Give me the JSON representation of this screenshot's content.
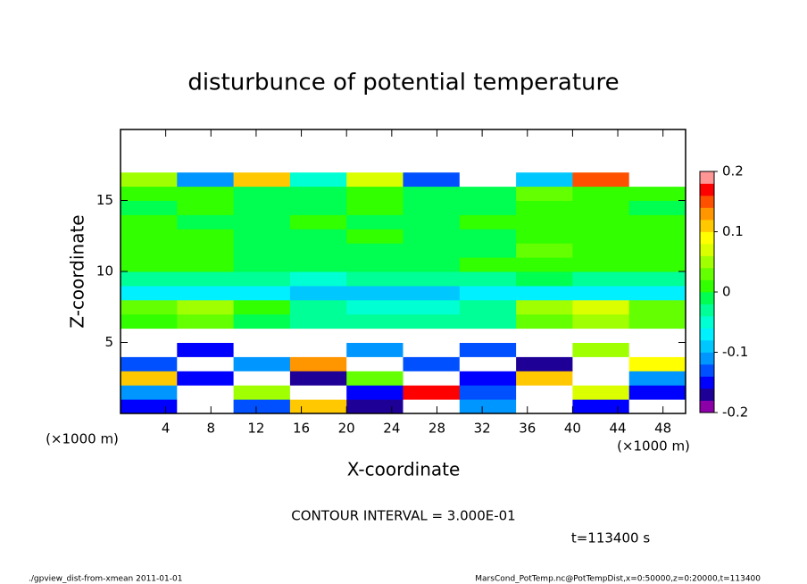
{
  "chart_data": {
    "type": "heatmap",
    "title": "disturbunce of potential temperature",
    "x_label": "X-coordinate",
    "y_label": "Z-coordinate",
    "x_unit_label": "(×1000 m)",
    "y_unit_label": "(×1000 m)",
    "xlim": [
      0,
      50
    ],
    "ylim": [
      0,
      20
    ],
    "xticks": [
      4,
      8,
      12,
      16,
      20,
      24,
      28,
      32,
      36,
      40,
      44,
      48
    ],
    "yticks": [
      5,
      10,
      15
    ],
    "x": [
      2.5,
      7.5,
      12.5,
      17.5,
      22.5,
      27.5,
      32.5,
      37.5,
      42.5,
      47.5
    ],
    "y": [
      0.5,
      1.5,
      2.5,
      3.5,
      4.5,
      5.5,
      6.5,
      7.5,
      8.5,
      9.5,
      10.5,
      11.5,
      12.5,
      13.5,
      14.5,
      15.5,
      16.5,
      17.5,
      18.5,
      19.5
    ],
    "z": [
      [
        -0.15,
        0.25,
        -0.12,
        0.12,
        -0.16,
        0.25,
        -0.1,
        0.25,
        -0.14,
        0.25
      ],
      [
        -0.1,
        0.25,
        0.05,
        0.25,
        -0.14,
        0.18,
        -0.12,
        0.25,
        0.08,
        -0.15
      ],
      [
        0.12,
        -0.14,
        0.25,
        -0.16,
        0.03,
        0.25,
        -0.15,
        0.12,
        0.25,
        -0.1
      ],
      [
        -0.12,
        0.25,
        -0.1,
        0.14,
        0.25,
        -0.12,
        0.25,
        -0.16,
        0.25,
        0.1
      ],
      [
        0.25,
        -0.14,
        0.25,
        0.25,
        -0.1,
        0.25,
        -0.12,
        0.25,
        0.05,
        0.25
      ],
      [
        -0.3,
        -0.3,
        -0.3,
        -0.3,
        -0.3,
        -0.3,
        -0.3,
        -0.3,
        -0.3,
        -0.3
      ],
      [
        0.02,
        0.04,
        0.0,
        -0.02,
        -0.02,
        -0.03,
        -0.02,
        0.04,
        0.05,
        0.03
      ],
      [
        0.03,
        0.06,
        0.02,
        -0.03,
        -0.04,
        -0.04,
        -0.03,
        0.05,
        0.07,
        0.03
      ],
      [
        -0.06,
        -0.07,
        -0.07,
        -0.08,
        -0.08,
        -0.08,
        -0.07,
        -0.06,
        -0.06,
        -0.07
      ],
      [
        -0.02,
        -0.03,
        -0.03,
        -0.04,
        -0.03,
        -0.03,
        -0.02,
        0.0,
        -0.02,
        -0.02
      ],
      [
        0.01,
        0.02,
        0.0,
        -0.01,
        0.0,
        -0.01,
        0.01,
        0.02,
        0.02,
        0.01
      ],
      [
        0.02,
        0.01,
        0.0,
        -0.01,
        0.0,
        0.0,
        0.0,
        0.03,
        0.02,
        0.01
      ],
      [
        0.01,
        0.01,
        0.0,
        0.0,
        0.01,
        0.0,
        0.0,
        0.02,
        0.02,
        0.01
      ],
      [
        0.01,
        0.0,
        0.0,
        0.01,
        0.0,
        0.0,
        0.01,
        0.02,
        0.01,
        0.01
      ],
      [
        0.0,
        0.01,
        0.0,
        0.0,
        0.01,
        0.0,
        0.0,
        0.02,
        0.02,
        0.0
      ],
      [
        0.01,
        0.02,
        0.0,
        0.0,
        0.01,
        0.0,
        0.0,
        0.03,
        0.02,
        0.01
      ],
      [
        0.05,
        -0.1,
        0.12,
        -0.05,
        0.08,
        -0.12,
        0.3,
        -0.08,
        0.15,
        -0.3
      ],
      [
        -0.4,
        -0.4,
        -0.4,
        -0.4,
        -0.4,
        -0.4,
        -0.4,
        -0.4,
        -0.4,
        -0.4
      ],
      [
        -0.4,
        -0.4,
        -0.4,
        -0.4,
        -0.4,
        -0.4,
        -0.4,
        -0.4,
        -0.4,
        -0.4
      ],
      [
        -0.4,
        -0.4,
        -0.4,
        -0.4,
        -0.4,
        -0.4,
        -0.4,
        -0.4,
        -0.4,
        -0.4
      ]
    ],
    "colorbar": {
      "lim": [
        -0.2,
        0.2
      ],
      "ticks": [
        -0.2,
        -0.1,
        0,
        0.1,
        0.2
      ],
      "levels": [
        -0.2,
        -0.18,
        -0.16,
        -0.14,
        -0.12,
        -0.1,
        -0.08,
        -0.06,
        -0.04,
        -0.02,
        0,
        0.02,
        0.04,
        0.06,
        0.08,
        0.1,
        0.12,
        0.14,
        0.16,
        0.18,
        0.2
      ],
      "colors": [
        "#8c00a8",
        "#1e0096",
        "#0000ff",
        "#0050ff",
        "#0096ff",
        "#00c8ff",
        "#00f0ff",
        "#00ffd2",
        "#00ff96",
        "#00ff50",
        "#32ff00",
        "#64ff00",
        "#a0ff00",
        "#dcff00",
        "#ffff00",
        "#ffc800",
        "#ff9600",
        "#ff5000",
        "#ff0000",
        "#ff9696"
      ],
      "out_of_range_color": "#ffffff"
    },
    "contour_interval": "CONTOUR INTERVAL = 3.000E-01",
    "time_label": "t=113400 s",
    "footer_left": "./gpview_dist-from-xmean  2011-01-01",
    "footer_right": "MarsCond_PotTemp.nc@PotTempDist,x=0:50000,z=0:20000,t=113400"
  }
}
